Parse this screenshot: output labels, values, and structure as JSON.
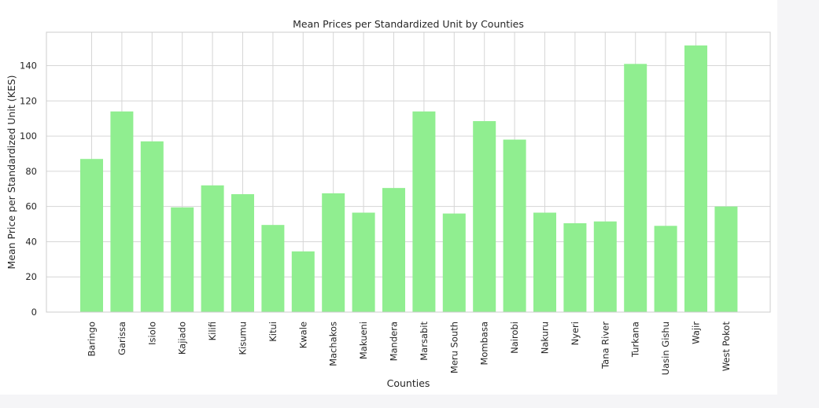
{
  "chart_data": {
    "type": "bar",
    "title": "Mean Prices per Standardized Unit by Counties",
    "xlabel": "Counties",
    "ylabel": "Mean Price per Standardized Unit (KES)",
    "categories": [
      "Baringo",
      "Garissa",
      "Isiolo",
      "Kajiado",
      "Kilifi",
      "Kisumu",
      "Kitui",
      "Kwale",
      "Machakos",
      "Makueni",
      "Mandera",
      "Marsabit",
      "Meru South",
      "Mombasa",
      "Nairobi",
      "Nakuru",
      "Nyeri",
      "Tana River",
      "Turkana",
      "Uasin Gishu",
      "Wajir",
      "West Pokot"
    ],
    "values": [
      87,
      114,
      97,
      59.5,
      72,
      67,
      49.5,
      34.5,
      67.5,
      56.5,
      70.5,
      114,
      56,
      108.5,
      98,
      56.5,
      50.5,
      51.5,
      141,
      49,
      151.5,
      60
    ],
    "ylim": [
      0,
      159
    ],
    "yticks": [
      0,
      20,
      40,
      60,
      80,
      100,
      120,
      140
    ],
    "bar_color": "#90ee90",
    "grid": true,
    "legend": "none"
  }
}
